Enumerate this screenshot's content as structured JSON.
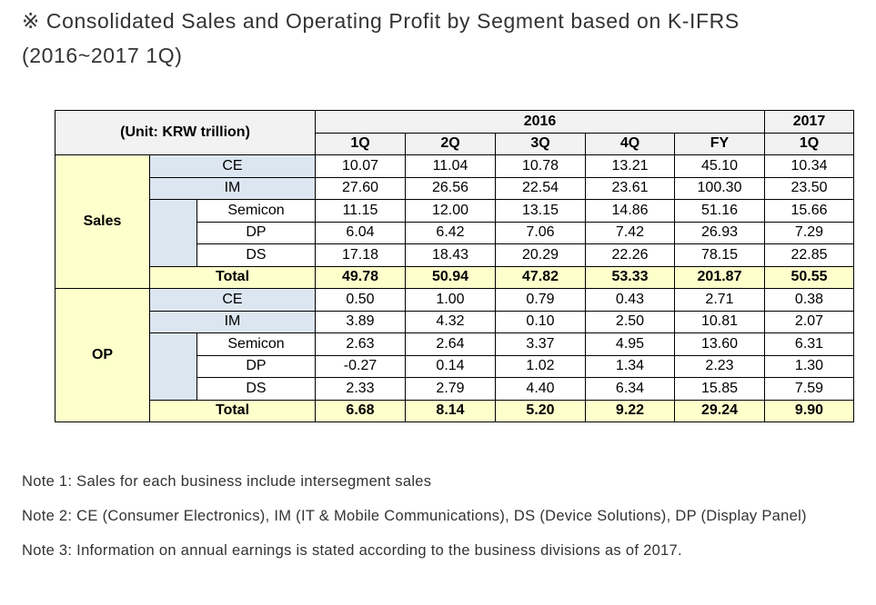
{
  "heading": {
    "line1": "※ Consolidated Sales and Operating Profit by Segment based on K-IFRS",
    "line2": "(2016~2017 1Q)"
  },
  "table": {
    "unit_label": "(Unit: KRW trillion)",
    "year_2016": "2016",
    "year_2017": "2017",
    "periods": [
      "1Q",
      "2Q",
      "3Q",
      "4Q",
      "FY",
      "1Q"
    ],
    "groups": [
      {
        "label": "Sales",
        "rows": [
          {
            "name": "CE",
            "values": [
              "10.07",
              "11.04",
              "10.78",
              "13.21",
              "45.10",
              "10.34"
            ]
          },
          {
            "name": "IM",
            "values": [
              "27.60",
              "26.56",
              "22.54",
              "23.61",
              "100.30",
              "23.50"
            ]
          },
          {
            "name": "Semicon",
            "values": [
              "11.15",
              "12.00",
              "13.15",
              "14.86",
              "51.16",
              "15.66"
            ]
          },
          {
            "name": "DP",
            "values": [
              "6.04",
              "6.42",
              "7.06",
              "7.42",
              "26.93",
              "7.29"
            ]
          },
          {
            "name": "DS",
            "values": [
              "17.18",
              "18.43",
              "20.29",
              "22.26",
              "78.15",
              "22.85"
            ]
          },
          {
            "name": "Total",
            "values": [
              "49.78",
              "50.94",
              "47.82",
              "53.33",
              "201.87",
              "50.55"
            ]
          }
        ]
      },
      {
        "label": "OP",
        "rows": [
          {
            "name": "CE",
            "values": [
              "0.50",
              "1.00",
              "0.79",
              "0.43",
              "2.71",
              "0.38"
            ]
          },
          {
            "name": "IM",
            "values": [
              "3.89",
              "4.32",
              "0.10",
              "2.50",
              "10.81",
              "2.07"
            ]
          },
          {
            "name": "Semicon",
            "values": [
              "2.63",
              "2.64",
              "3.37",
              "4.95",
              "13.60",
              "6.31"
            ]
          },
          {
            "name": "DP",
            "values": [
              "-0.27",
              "0.14",
              "1.02",
              "1.34",
              "2.23",
              "1.30"
            ]
          },
          {
            "name": "DS",
            "values": [
              "2.33",
              "2.79",
              "4.40",
              "6.34",
              "15.85",
              "7.59"
            ]
          },
          {
            "name": "Total",
            "values": [
              "6.68",
              "8.14",
              "5.20",
              "9.22",
              "29.24",
              "9.90"
            ]
          }
        ]
      }
    ]
  },
  "notes": [
    "Note 1: Sales for each business include intersegment sales",
    "Note 2: CE (Consumer Electronics), IM (IT & Mobile Communications), DS (Device Solutions), DP (Display Panel)",
    "Note 3: Information on annual earnings is stated according to the business divisions as of 2017."
  ],
  "colors": {
    "header_gray": "#f2f2f2",
    "group_yellow": "#ffffcc",
    "segment_blue": "#dce6f1",
    "text": "#333333"
  }
}
